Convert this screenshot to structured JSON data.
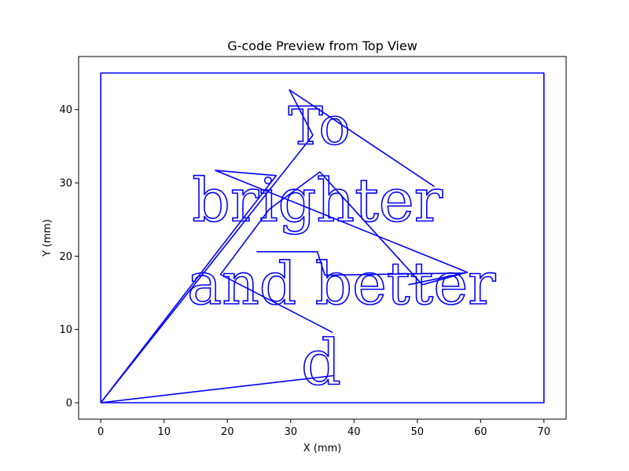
{
  "chart_data": {
    "type": "line",
    "title": "G-code Preview from Top View",
    "xlabel": "X (mm)",
    "ylabel": "Y (mm)",
    "xlim": [
      -3.5,
      73.5
    ],
    "ylim": [
      -2.25,
      47.25
    ],
    "xticks": [
      0,
      10,
      20,
      30,
      40,
      50,
      60,
      70
    ],
    "yticks": [
      0,
      10,
      20,
      30,
      40
    ],
    "grid": false,
    "line_color": "#0000ff",
    "series": [
      {
        "x": [
          0,
          70,
          70,
          0,
          0
        ],
        "y": [
          0,
          0,
          45,
          45,
          0
        ]
      },
      {
        "x": [
          0,
          36.8
        ],
        "y": [
          0,
          3.7
        ]
      },
      {
        "x": [
          0,
          33.5,
          29.8,
          52.7
        ],
        "y": [
          0,
          36.5,
          42.7,
          29.5
        ]
      },
      {
        "x": [
          0,
          27.7,
          18.1,
          57.9,
          50.8,
          34.6,
          26.6,
          18.9,
          36.6
        ],
        "y": [
          0,
          31.0,
          31.7,
          17.8,
          16.1,
          31.5,
          26.4,
          17.5,
          9.6
        ]
      },
      {
        "x": [
          24.6,
          34.2,
          35.4,
          57.5,
          48.6
        ],
        "y": [
          20.6,
          20.6,
          17.4,
          17.7,
          16.1
        ]
      }
    ],
    "text_paths": [
      {
        "text": "To",
        "x": 34.5,
        "y": 35.3
      },
      {
        "text": "brighter",
        "x": 34.2,
        "y": 24.8
      },
      {
        "text": "and better",
        "x": 38.0,
        "y": 13.5
      },
      {
        "text": "d",
        "x": 34.8,
        "y": 2.5
      }
    ]
  }
}
